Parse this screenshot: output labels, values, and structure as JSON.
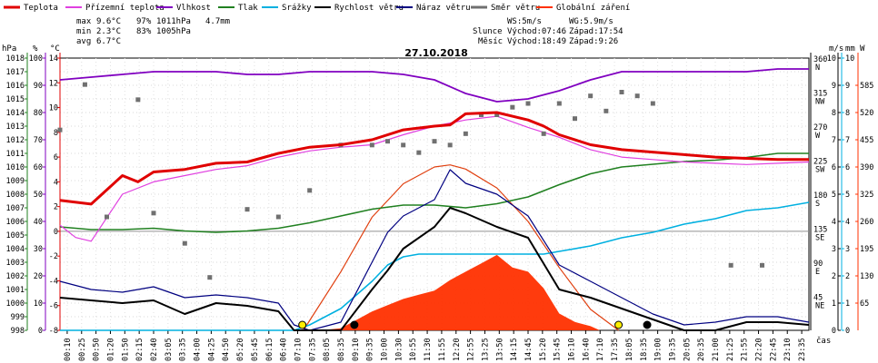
{
  "chart_data": {
    "type": "line",
    "title": "27.10.2018",
    "x_axis_label": "čas",
    "legend": [
      {
        "name": "Teplota",
        "color": "#e00000"
      },
      {
        "name": "Přízemní teplota",
        "color": "#e040e0"
      },
      {
        "name": "Vlhkost",
        "color": "#8000c0"
      },
      {
        "name": "Tlak",
        "color": "#208020"
      },
      {
        "name": "Srážky",
        "color": "#00b0e0"
      },
      {
        "name": "Rychlost větru",
        "color": "#000000"
      },
      {
        "name": "Náraz větru",
        "color": "#000080"
      },
      {
        "name": "Směr větru",
        "color": "#707070"
      },
      {
        "name": "Globální záření",
        "color": "#ff3000"
      }
    ],
    "stats": {
      "max": {
        "label": "max",
        "temp": "9.6°C",
        "hum": "97%",
        "press": "1011hPa",
        "rain": "4.7mm"
      },
      "min": {
        "label": "min",
        "temp": "2.3°C",
        "hum": "83%",
        "press": "1005hPa"
      },
      "avg": {
        "label": "avg",
        "temp": "6.7°C"
      }
    },
    "info": {
      "ws": "WS:5m/s",
      "wg": "WG:5.9m/s",
      "sun_label": "Slunce",
      "sunrise": "Východ:07:46",
      "sunset": "Západ:17:54",
      "moon_label": "Měsíc",
      "moonrise": "Východ:18:49",
      "moonset": "Západ:9:26"
    },
    "axes": {
      "hpa": {
        "unit": "hPa",
        "range": [
          998,
          1018
        ],
        "ticks": [
          "1018",
          "1017",
          "1016",
          "1015",
          "1014",
          "1013",
          "1012",
          "1011",
          "1010",
          "1009",
          "1008",
          "1007",
          "1006",
          "1005",
          "1004",
          "1003",
          "1002",
          "1001",
          "1000",
          "999",
          "998"
        ]
      },
      "pct": {
        "unit": "%",
        "range": [
          0,
          100
        ],
        "ticks": [
          "100",
          "90",
          "80",
          "70",
          "60",
          "50",
          "40",
          "30",
          "20",
          "10",
          "0"
        ]
      },
      "temp": {
        "unit": "°C",
        "range": [
          -8,
          14
        ],
        "ticks": [
          "14",
          "12",
          "10",
          "8",
          "6",
          "4",
          "2",
          "0",
          "-2",
          "-4",
          "-6",
          "-8"
        ]
      },
      "dir": {
        "unit": "°",
        "range": [
          0,
          360
        ],
        "ticks": [
          {
            "deg": "360",
            "dir": "N"
          },
          {
            "deg": "315",
            "dir": "NW"
          },
          {
            "deg": "270",
            "dir": "W"
          },
          {
            "deg": "225",
            "dir": "SW"
          },
          {
            "deg": "180",
            "dir": "S"
          },
          {
            "deg": "135",
            "dir": "SE"
          },
          {
            "deg": "90",
            "dir": "E"
          },
          {
            "deg": "45",
            "dir": "NE"
          }
        ]
      },
      "ms": {
        "unit": "m/s",
        "range": [
          0,
          10
        ],
        "ticks": [
          "10",
          "9",
          "8",
          "7",
          "6",
          "5",
          "4",
          "3",
          "2",
          "1",
          "0"
        ]
      },
      "mm": {
        "unit": "mm",
        "range": [
          0,
          10
        ],
        "ticks": [
          "10",
          "9",
          "8",
          "7",
          "6",
          "5",
          "4",
          "3",
          "2",
          "1",
          "0"
        ]
      },
      "w": {
        "unit": "W",
        "range": [
          0,
          650
        ],
        "ticks": [
          "585",
          "520",
          "455",
          "390",
          "325",
          "260",
          "195",
          "130",
          "65"
        ]
      }
    },
    "time_ticks": [
      "00:10",
      "00:25",
      "00:50",
      "01:20",
      "01:50",
      "02:15",
      "02:40",
      "03:05",
      "03:35",
      "04:00",
      "04:25",
      "04:50",
      "05:20",
      "05:45",
      "06:15",
      "06:40",
      "07:10",
      "07:35",
      "08:05",
      "08:35",
      "09:10",
      "09:35",
      "10:00",
      "10:30",
      "10:55",
      "11:30",
      "11:55",
      "12:20",
      "12:55",
      "13:25",
      "13:50",
      "14:15",
      "14:45",
      "15:20",
      "15:45",
      "16:10",
      "16:40",
      "17:10",
      "17:35",
      "18:05",
      "18:35",
      "19:00",
      "19:35",
      "20:05",
      "20:35",
      "21:00",
      "21:25",
      "21:55",
      "22:20",
      "22:45",
      "23:10",
      "23:35"
    ],
    "series": [
      {
        "name": "Teplota",
        "unit": "°C",
        "x": [
          0,
          1,
          2,
          2.5,
          3,
          4,
          5,
          6,
          7,
          8,
          9,
          10,
          11,
          12,
          12.5,
          13,
          14,
          15,
          15.5,
          16,
          17,
          18,
          19,
          20,
          21,
          22,
          23,
          24
        ],
        "values": [
          2.5,
          2.2,
          4.5,
          4.0,
          4.8,
          5.0,
          5.5,
          5.6,
          6.3,
          6.8,
          7.0,
          7.4,
          8.2,
          8.5,
          8.6,
          9.5,
          9.6,
          9.0,
          8.5,
          7.8,
          7.0,
          6.6,
          6.4,
          6.2,
          6.0,
          5.9,
          5.8,
          5.8
        ]
      },
      {
        "name": "Přízemní teplota",
        "unit": "°C",
        "x": [
          0,
          0.5,
          1,
          2,
          3,
          4,
          5,
          6,
          7,
          8,
          9,
          10,
          11,
          12,
          13,
          14,
          15,
          16,
          17,
          18,
          19,
          20,
          21,
          22,
          23,
          24
        ],
        "values": [
          0.5,
          -0.5,
          -0.8,
          3.0,
          4.0,
          4.5,
          5.0,
          5.3,
          6.0,
          6.5,
          6.8,
          7.0,
          7.8,
          8.5,
          9.0,
          9.3,
          8.4,
          7.6,
          6.6,
          6.0,
          5.8,
          5.6,
          5.5,
          5.4,
          5.5,
          5.6
        ]
      },
      {
        "name": "Vlhkost",
        "unit": "%",
        "x": [
          0,
          1,
          2,
          3,
          4,
          5,
          6,
          7,
          8,
          9,
          10,
          11,
          12,
          13,
          14,
          15,
          16,
          17,
          18,
          19,
          20,
          21,
          22,
          23,
          24
        ],
        "values": [
          92,
          93,
          94,
          95,
          95,
          95,
          94,
          94,
          95,
          95,
          95,
          94,
          92,
          87,
          84,
          85,
          88,
          92,
          95,
          95,
          95,
          95,
          95,
          96,
          96
        ]
      },
      {
        "name": "Tlak",
        "unit": "hPa",
        "x": [
          0,
          1,
          2,
          3,
          4,
          5,
          6,
          7,
          8,
          9,
          10,
          11,
          12,
          13,
          14,
          15,
          16,
          17,
          18,
          19,
          20,
          21,
          22,
          23,
          24
        ],
        "values": [
          1005.6,
          1005.4,
          1005.4,
          1005.5,
          1005.3,
          1005.2,
          1005.3,
          1005.5,
          1005.9,
          1006.4,
          1006.9,
          1007.2,
          1007.2,
          1007.0,
          1007.3,
          1007.8,
          1008.7,
          1009.5,
          1010.0,
          1010.2,
          1010.4,
          1010.5,
          1010.7,
          1011.0,
          1011.0
        ]
      },
      {
        "name": "Srážky",
        "unit": "mm",
        "x": [
          0,
          7.5,
          8,
          9,
          10,
          10.5,
          11,
          11.5,
          12,
          13,
          14,
          15,
          15.5,
          16,
          17,
          18,
          19,
          20,
          21,
          22,
          23,
          24
        ],
        "values": [
          0,
          0,
          0.2,
          0.8,
          1.8,
          2.4,
          2.7,
          2.8,
          2.8,
          2.8,
          2.8,
          2.8,
          2.8,
          2.9,
          3.1,
          3.4,
          3.6,
          3.9,
          4.1,
          4.4,
          4.5,
          4.7
        ]
      },
      {
        "name": "Rychlost větru",
        "unit": "m/s",
        "x": [
          0,
          1,
          2,
          3,
          4,
          5,
          6,
          7,
          7.5,
          8,
          9,
          10,
          10.5,
          11,
          12,
          12.5,
          13,
          14,
          15,
          16,
          17,
          18,
          19,
          20,
          21,
          22,
          23,
          24
        ],
        "values": [
          1.2,
          1.1,
          1.0,
          1.1,
          0.6,
          1.0,
          0.9,
          0.7,
          0,
          0,
          0,
          1.5,
          2.2,
          3.0,
          3.8,
          4.5,
          4.3,
          3.8,
          3.4,
          1.5,
          1.2,
          0.8,
          0.4,
          0,
          0,
          0.3,
          0.3,
          0.2
        ]
      },
      {
        "name": "Náraz větru",
        "unit": "m/s",
        "x": [
          0,
          1,
          2,
          3,
          4,
          5,
          6,
          7,
          7.5,
          8,
          9,
          10,
          10.5,
          11,
          12,
          12.5,
          13,
          14,
          15,
          16,
          17,
          18,
          19,
          20,
          21,
          22,
          23,
          24
        ],
        "values": [
          1.8,
          1.5,
          1.4,
          1.6,
          1.2,
          1.3,
          1.2,
          1.0,
          0.2,
          0,
          0.3,
          2.5,
          3.6,
          4.2,
          4.8,
          5.9,
          5.4,
          5.0,
          4.2,
          2.4,
          1.8,
          1.2,
          0.6,
          0.2,
          0.3,
          0.5,
          0.5,
          0.3
        ]
      },
      {
        "name": "Směr větru",
        "unit": "°",
        "type": "scatter",
        "x": [
          0,
          0.8,
          1.5,
          2.5,
          3.0,
          4.0,
          4.8,
          6.0,
          7.0,
          8.0,
          9.0,
          10.0,
          10.5,
          11.0,
          11.5,
          12.0,
          12.5,
          13.0,
          13.5,
          14.0,
          14.5,
          15.0,
          15.5,
          16.0,
          16.5,
          17.0,
          17.5,
          18.0,
          18.5,
          19.0,
          21.5,
          22.5
        ],
        "values": [
          265,
          325,
          150,
          305,
          155,
          115,
          70,
          160,
          150,
          185,
          245,
          245,
          250,
          245,
          235,
          250,
          245,
          260,
          285,
          285,
          295,
          300,
          260,
          300,
          280,
          310,
          290,
          315,
          310,
          300,
          86,
          86
        ]
      },
      {
        "name": "Globální záření",
        "unit": "W",
        "type": "area",
        "x": [
          0,
          8.3,
          9,
          9.5,
          10,
          10.5,
          11,
          11.5,
          12,
          12.5,
          13,
          13.5,
          14,
          14.5,
          15,
          15.5,
          16,
          16.5,
          17,
          17.3,
          24
        ],
        "values": [
          0,
          0,
          5,
          25,
          45,
          60,
          75,
          85,
          95,
          120,
          140,
          160,
          180,
          150,
          140,
          100,
          40,
          20,
          10,
          0,
          0
        ]
      },
      {
        "name": "Globální záření (teoretické)",
        "unit": "W",
        "x": [
          7.8,
          9,
          10,
          11,
          12,
          12.5,
          13,
          14,
          15,
          16,
          17,
          17.9
        ],
        "values": [
          0,
          140,
          270,
          350,
          390,
          395,
          385,
          340,
          260,
          150,
          50,
          0
        ]
      }
    ]
  }
}
